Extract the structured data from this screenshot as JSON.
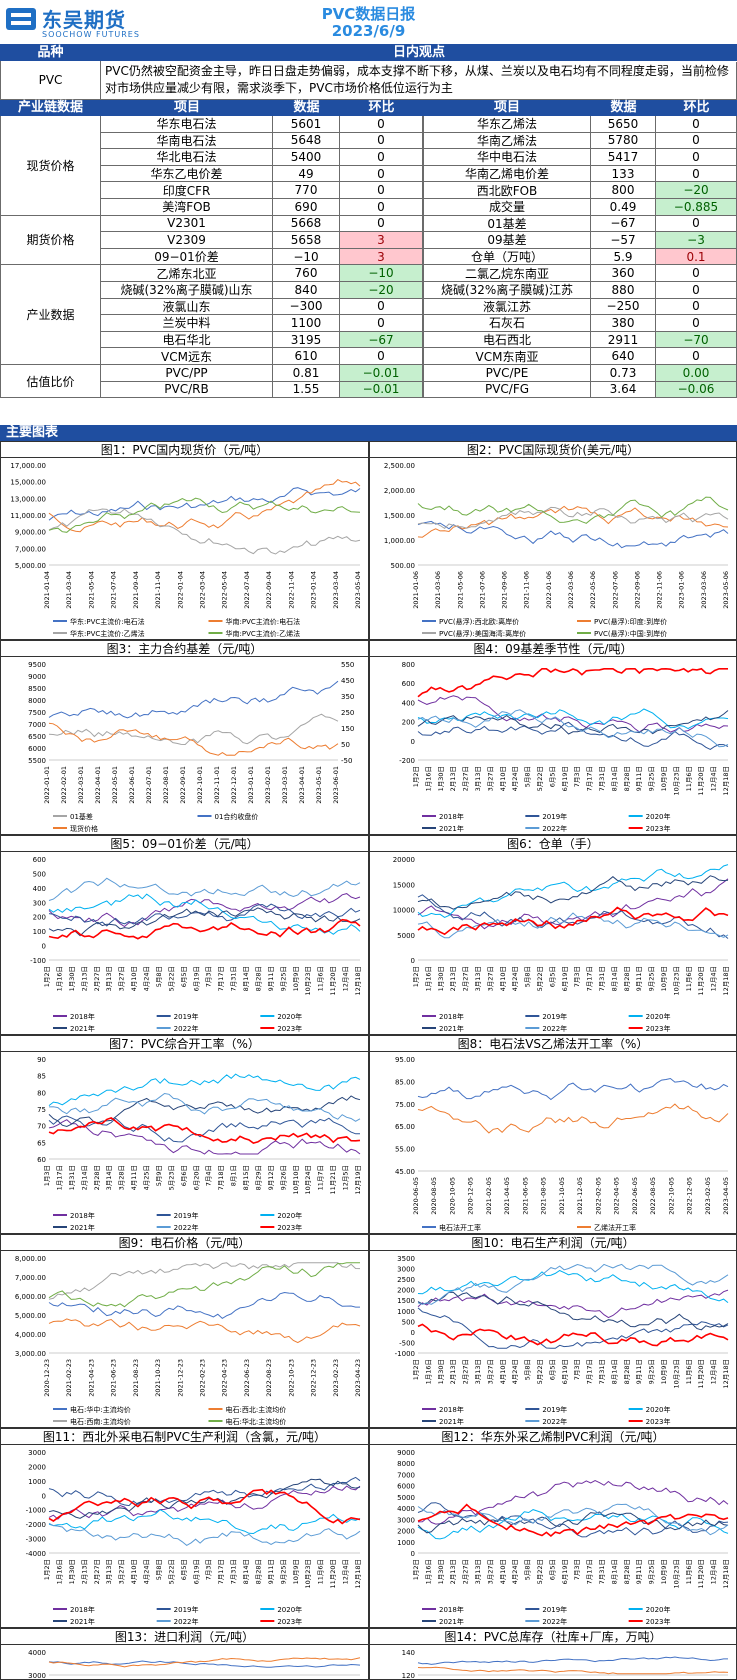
{
  "header": {
    "logo_cn": "东吴期货",
    "logo_en": "SOOCHOW FUTURES",
    "title": "PVC数据日报",
    "date": "2023/6/9"
  },
  "view_header": {
    "col1": "品种",
    "col2": "日内观点"
  },
  "view": {
    "product": "PVC",
    "text": "PVC仍然被空配资金主导，昨日日盘走势偏弱，成本支撑不断下移，从煤、兰炭以及电石均有不同程度走弱，当前检修对市场供应量减少有限，需求淡季下，PVC市场价格低位运行为主"
  },
  "table_header": {
    "cat": "产业链数据",
    "item": "项目",
    "data": "数据",
    "chg": "环比",
    "item2": "项目",
    "data2": "数据",
    "chg2": "环比"
  },
  "groups": [
    {
      "name": "现货价格",
      "rows": [
        [
          "华东电石法",
          "5601",
          "0",
          "",
          "华东乙烯法",
          "5650",
          "0",
          ""
        ],
        [
          "华南电石法",
          "5648",
          "0",
          "",
          "华南乙烯法",
          "5780",
          "0",
          ""
        ],
        [
          "华北电石法",
          "5400",
          "0",
          "",
          "华中电石法",
          "5417",
          "0",
          ""
        ],
        [
          "华东乙电价差",
          "49",
          "0",
          "",
          "华南乙烯电价差",
          "133",
          "0",
          ""
        ],
        [
          "印度CFR",
          "770",
          "0",
          "",
          "西北欧FOB",
          "800",
          "−20",
          "g"
        ],
        [
          "美湾FOB",
          "690",
          "0",
          "",
          "成交量",
          "0.49",
          "−0.885",
          "g"
        ]
      ]
    },
    {
      "name": "期货价格",
      "rows": [
        [
          "V2301",
          "5668",
          "0",
          "",
          "01基差",
          "−67",
          "0",
          ""
        ],
        [
          "V2309",
          "5658",
          "3",
          "r",
          "09基差",
          "−57",
          "−3",
          "g"
        ],
        [
          "09−01价差",
          "−10",
          "3",
          "r",
          "仓单（万吨）",
          "5.9",
          "0.1",
          "r"
        ]
      ]
    },
    {
      "name": "产业数据",
      "rows": [
        [
          "乙烯东北亚",
          "760",
          "−10",
          "g",
          "二氯乙烷东南亚",
          "360",
          "0",
          ""
        ],
        [
          "烧碱(32%离子膜碱)山东",
          "840",
          "−20",
          "g",
          "烧碱(32%离子膜碱)江苏",
          "880",
          "0",
          ""
        ],
        [
          "液氯山东",
          "−300",
          "0",
          "",
          "液氯江苏",
          "−250",
          "0",
          ""
        ],
        [
          "兰炭中料",
          "1100",
          "0",
          "",
          "石灰石",
          "380",
          "0",
          ""
        ],
        [
          "电石华北",
          "3195",
          "−67",
          "g",
          "电石西北",
          "2911",
          "−70",
          "g"
        ],
        [
          "VCM远东",
          "610",
          "0",
          "",
          "VCM东南亚",
          "640",
          "0",
          ""
        ]
      ]
    },
    {
      "name": "估值比价",
      "rows": [
        [
          "PVC/PP",
          "0.81",
          "−0.01",
          "g",
          "PVC/PE",
          "0.73",
          "0.00",
          "g"
        ],
        [
          "PVC/RB",
          "1.55",
          "−0.01",
          "g",
          "PVC/FG",
          "3.64",
          "−0.06",
          "g"
        ]
      ]
    }
  ],
  "main_section": "主要图表",
  "colors": {
    "blue_bar": "#1f4ea0",
    "green": "#c6efce",
    "red": "#ffc7ce"
  },
  "figures": [
    {
      "title": "图1：PVC国内现货价（元/吨）",
      "yticks": [
        "17,000.00",
        "15,000.00",
        "13,000.00",
        "11,000.00",
        "9,000.00",
        "7,000.00",
        "5,000.00"
      ],
      "xticks": [
        "2021-01-04",
        "2021-03-04",
        "2021-05-04",
        "2021-07-04",
        "2021-09-04",
        "2021-11-04",
        "2022-01-04",
        "2022-03-04",
        "2022-05-04",
        "2022-07-04",
        "2022-09-04",
        "2022-11-04",
        "2023-01-04",
        "2023-03-04",
        "2023-05-04"
      ],
      "legend": [
        "华东:PVC主流价:电石法",
        "华南:PVC主流价:电石法",
        "华东:PVC主流价:乙烯法",
        "华南:PVC主流价:乙烯法"
      ]
    },
    {
      "title": "图2：PVC国际现货价(美元/吨）",
      "yticks": [
        "2,500.00",
        "2,000.00",
        "1,500.00",
        "1,000.00",
        "500.00"
      ],
      "xticks": [
        "2021-01-06",
        "2021-03-06",
        "2021-05-06",
        "2021-07-06",
        "2021-09-06",
        "2021-11-06",
        "2022-01-06",
        "2022-03-06",
        "2022-05-06",
        "2022-07-06",
        "2022-09-06",
        "2022-11-06",
        "2023-01-06",
        "2023-03-06",
        "2023-05-06"
      ],
      "legend": [
        "PVC(悬浮):西北欧:离岸价",
        "PVC(悬浮):印度:到岸价",
        "PVC(悬浮):美国海湾:离岸价",
        "PVC(悬浮):中国:到岸价"
      ]
    },
    {
      "title": "图3：主力合约基差（元/吨）",
      "yticks": [
        "9500",
        "9000",
        "8500",
        "8000",
        "7500",
        "7000",
        "6500",
        "6000",
        "5500"
      ],
      "y2ticks": [
        "550",
        "450",
        "350",
        "250",
        "150",
        "50",
        "-50"
      ],
      "xticks": [
        "2022-01-01",
        "2022-02-01",
        "2022-03-01",
        "2022-04-01",
        "2022-05-01",
        "2022-06-01",
        "2022-07-01",
        "2022-08-01",
        "2022-09-01",
        "2022-10-01",
        "2022-11-01",
        "2022-12-01",
        "2023-01-01",
        "2023-02-01",
        "2023-03-01",
        "2023-04-01",
        "2023-05-01",
        "2023-06-01"
      ],
      "legend": [
        "01基差",
        "01合约收盘价",
        "现货价格"
      ]
    },
    {
      "title": "图4：09基差季节性（元/吨）",
      "yticks": [
        "800",
        "600",
        "400",
        "200",
        "0",
        "-200"
      ],
      "xticks": [
        "1月2日",
        "1月16日",
        "1月30日",
        "2月13日",
        "2月27日",
        "3月13日",
        "3月27日",
        "4月10日",
        "4月24日",
        "5月8日",
        "5月22日",
        "6月5日",
        "6月19日",
        "7月3日",
        "7月17日",
        "7月31日",
        "8月14日",
        "8月28日",
        "9月11日",
        "9月25日",
        "10月9日",
        "10月23日",
        "11月6日",
        "11月20日",
        "12月4日",
        "12月18日"
      ],
      "legend": [
        "2018年",
        "2019年",
        "2020年",
        "2021年",
        "2022年",
        "2023年"
      ]
    },
    {
      "title": "图5：09−01价差（元/吨）",
      "yticks": [
        "600",
        "500",
        "400",
        "300",
        "200",
        "100",
        "0",
        "-100"
      ],
      "xticks": [
        "1月2日",
        "1月16日",
        "1月30日",
        "2月13日",
        "2月27日",
        "3月13日",
        "3月27日",
        "4月10日",
        "4月24日",
        "5月8日",
        "5月22日",
        "6月5日",
        "6月19日",
        "7月3日",
        "7月17日",
        "7月31日",
        "8月14日",
        "8月28日",
        "9月11日",
        "9月25日",
        "10月9日",
        "10月23日",
        "11月6日",
        "11月20日",
        "12月4日",
        "12月18日"
      ],
      "legend": [
        "2018年",
        "2019年",
        "2020年",
        "2021年",
        "2022年",
        "2023年"
      ]
    },
    {
      "title": "图6：仓单（手）",
      "yticks": [
        "20000",
        "15000",
        "10000",
        "5000",
        "0"
      ],
      "xticks": [
        "1月2日",
        "1月16日",
        "1月30日",
        "2月13日",
        "2月27日",
        "3月13日",
        "3月27日",
        "4月10日",
        "4月24日",
        "5月8日",
        "5月22日",
        "6月5日",
        "6月19日",
        "7月3日",
        "7月17日",
        "7月31日",
        "8月14日",
        "8月28日",
        "9月11日",
        "9月25日",
        "10月9日",
        "10月23日",
        "11月6日",
        "11月20日",
        "12月4日",
        "12月18日"
      ],
      "legend": [
        "2018年",
        "2019年",
        "2020年",
        "2021年",
        "2022年",
        "2023年"
      ]
    },
    {
      "title": "图7：PVC综合开工率（%）",
      "yticks": [
        "90",
        "85",
        "80",
        "75",
        "70",
        "65",
        "60"
      ],
      "xticks": [
        "1月3日",
        "1月17日",
        "1月31日",
        "2月14日",
        "2月28日",
        "3月14日",
        "3月28日",
        "4月11日",
        "4月25日",
        "5月9日",
        "5月23日",
        "6月6日",
        "6月20日",
        "7月4日",
        "7月18日",
        "8月1日",
        "8月15日",
        "8月29日",
        "9月12日",
        "9月26日",
        "10月10日",
        "10月24日",
        "11月7日",
        "11月21日",
        "12月5日",
        "12月19日"
      ],
      "legend": [
        "2018年",
        "2019年",
        "2020年",
        "2021年",
        "2022年",
        "2023年"
      ]
    },
    {
      "title": "图8：电石法VS乙烯法开工率（%）",
      "yticks": [
        "95.00",
        "85.00",
        "75.00",
        "65.00",
        "55.00",
        "45.00"
      ],
      "xticks": [
        "2020-06-05",
        "2020-08-05",
        "2020-10-05",
        "2020-12-05",
        "2021-02-05",
        "2021-04-05",
        "2021-06-05",
        "2021-08-05",
        "2021-10-05",
        "2021-12-05",
        "2022-02-05",
        "2022-04-05",
        "2022-06-05",
        "2022-08-05",
        "2022-10-05",
        "2022-12-05",
        "2023-02-05",
        "2023-04-05"
      ],
      "legend": [
        "电石法开工率",
        "乙烯法开工率"
      ]
    },
    {
      "title": "图9：电石价格（元/吨）",
      "yticks": [
        "8,000.00",
        "7,000.00",
        "6,000.00",
        "5,000.00",
        "4,000.00",
        "3,000.00"
      ],
      "xticks": [
        "2020-12-23",
        "2021-02-23",
        "2021-04-23",
        "2021-06-23",
        "2021-08-23",
        "2021-10-23",
        "2021-12-23",
        "2022-02-23",
        "2022-04-23",
        "2022-06-23",
        "2022-08-23",
        "2022-10-23",
        "2022-12-23",
        "2023-02-23",
        "2023-04-23"
      ],
      "legend": [
        "电石:华中:主流均价",
        "电石:西北:主流均价",
        "电石:西南:主流均价",
        "电石:华北:主流均价"
      ]
    },
    {
      "title": "图10：电石生产利润（元/吨）",
      "yticks": [
        "3500",
        "3000",
        "2500",
        "2000",
        "1500",
        "1000",
        "500",
        "0",
        "-500",
        "-1000"
      ],
      "xticks": [
        "1月2日",
        "1月16日",
        "1月30日",
        "2月13日",
        "2月27日",
        "3月13日",
        "3月27日",
        "4月10日",
        "4月24日",
        "5月8日",
        "5月22日",
        "6月5日",
        "6月19日",
        "7月3日",
        "7月17日",
        "7月31日",
        "8月14日",
        "8月28日",
        "9月11日",
        "9月25日",
        "10月9日",
        "10月23日",
        "11月6日",
        "11月20日",
        "12月4日",
        "12月18日"
      ],
      "legend": [
        "2018年",
        "2019年",
        "2020年",
        "2021年",
        "2022年",
        "2023年"
      ]
    },
    {
      "title": "图11：西北外采电石制PVC生产利润（含氯，元/吨）",
      "yticks": [
        "3000",
        "2000",
        "1000",
        "0",
        "-1000",
        "-2000",
        "-3000",
        "-4000"
      ],
      "xticks": [
        "1月2日",
        "1月16日",
        "1月30日",
        "2月13日",
        "2月27日",
        "3月13日",
        "3月27日",
        "4月10日",
        "4月24日",
        "5月8日",
        "5月22日",
        "6月5日",
        "6月19日",
        "7月3日",
        "7月17日",
        "7月31日",
        "8月14日",
        "8月28日",
        "9月11日",
        "9月25日",
        "10月9日",
        "10月23日",
        "11月6日",
        "11月20日",
        "12月4日",
        "12月18日"
      ],
      "legend": [
        "2018年",
        "2019年",
        "2020年",
        "2021年",
        "2022年",
        "2023年"
      ]
    },
    {
      "title": "图12：华东外采乙烯制PVC利润（元/吨）",
      "yticks": [
        "9000",
        "8000",
        "7000",
        "6000",
        "5000",
        "4000",
        "3000",
        "2000",
        "1000",
        "0"
      ],
      "xticks": [
        "1月2日",
        "1月16日",
        "1月30日",
        "2月13日",
        "2月27日",
        "3月13日",
        "3月27日",
        "4月10日",
        "4月24日",
        "5月8日",
        "5月22日",
        "6月5日",
        "6月19日",
        "7月3日",
        "7月17日",
        "7月31日",
        "8月14日",
        "8月28日",
        "9月11日",
        "9月25日",
        "10月9日",
        "10月23日",
        "11月6日",
        "11月20日",
        "12月4日",
        "12月18日"
      ],
      "legend": [
        "2018年",
        "2019年",
        "2020年",
        "2021年",
        "2022年",
        "2023年"
      ]
    },
    {
      "title": "图13：进口利润（元/吨）",
      "yticks": [
        "4000",
        "3000"
      ],
      "xticks": [],
      "legend": []
    },
    {
      "title": "图14：PVC总库存（社库+厂库，万吨）",
      "yticks": [
        "140",
        "120"
      ],
      "xticks": [],
      "legend": []
    }
  ]
}
